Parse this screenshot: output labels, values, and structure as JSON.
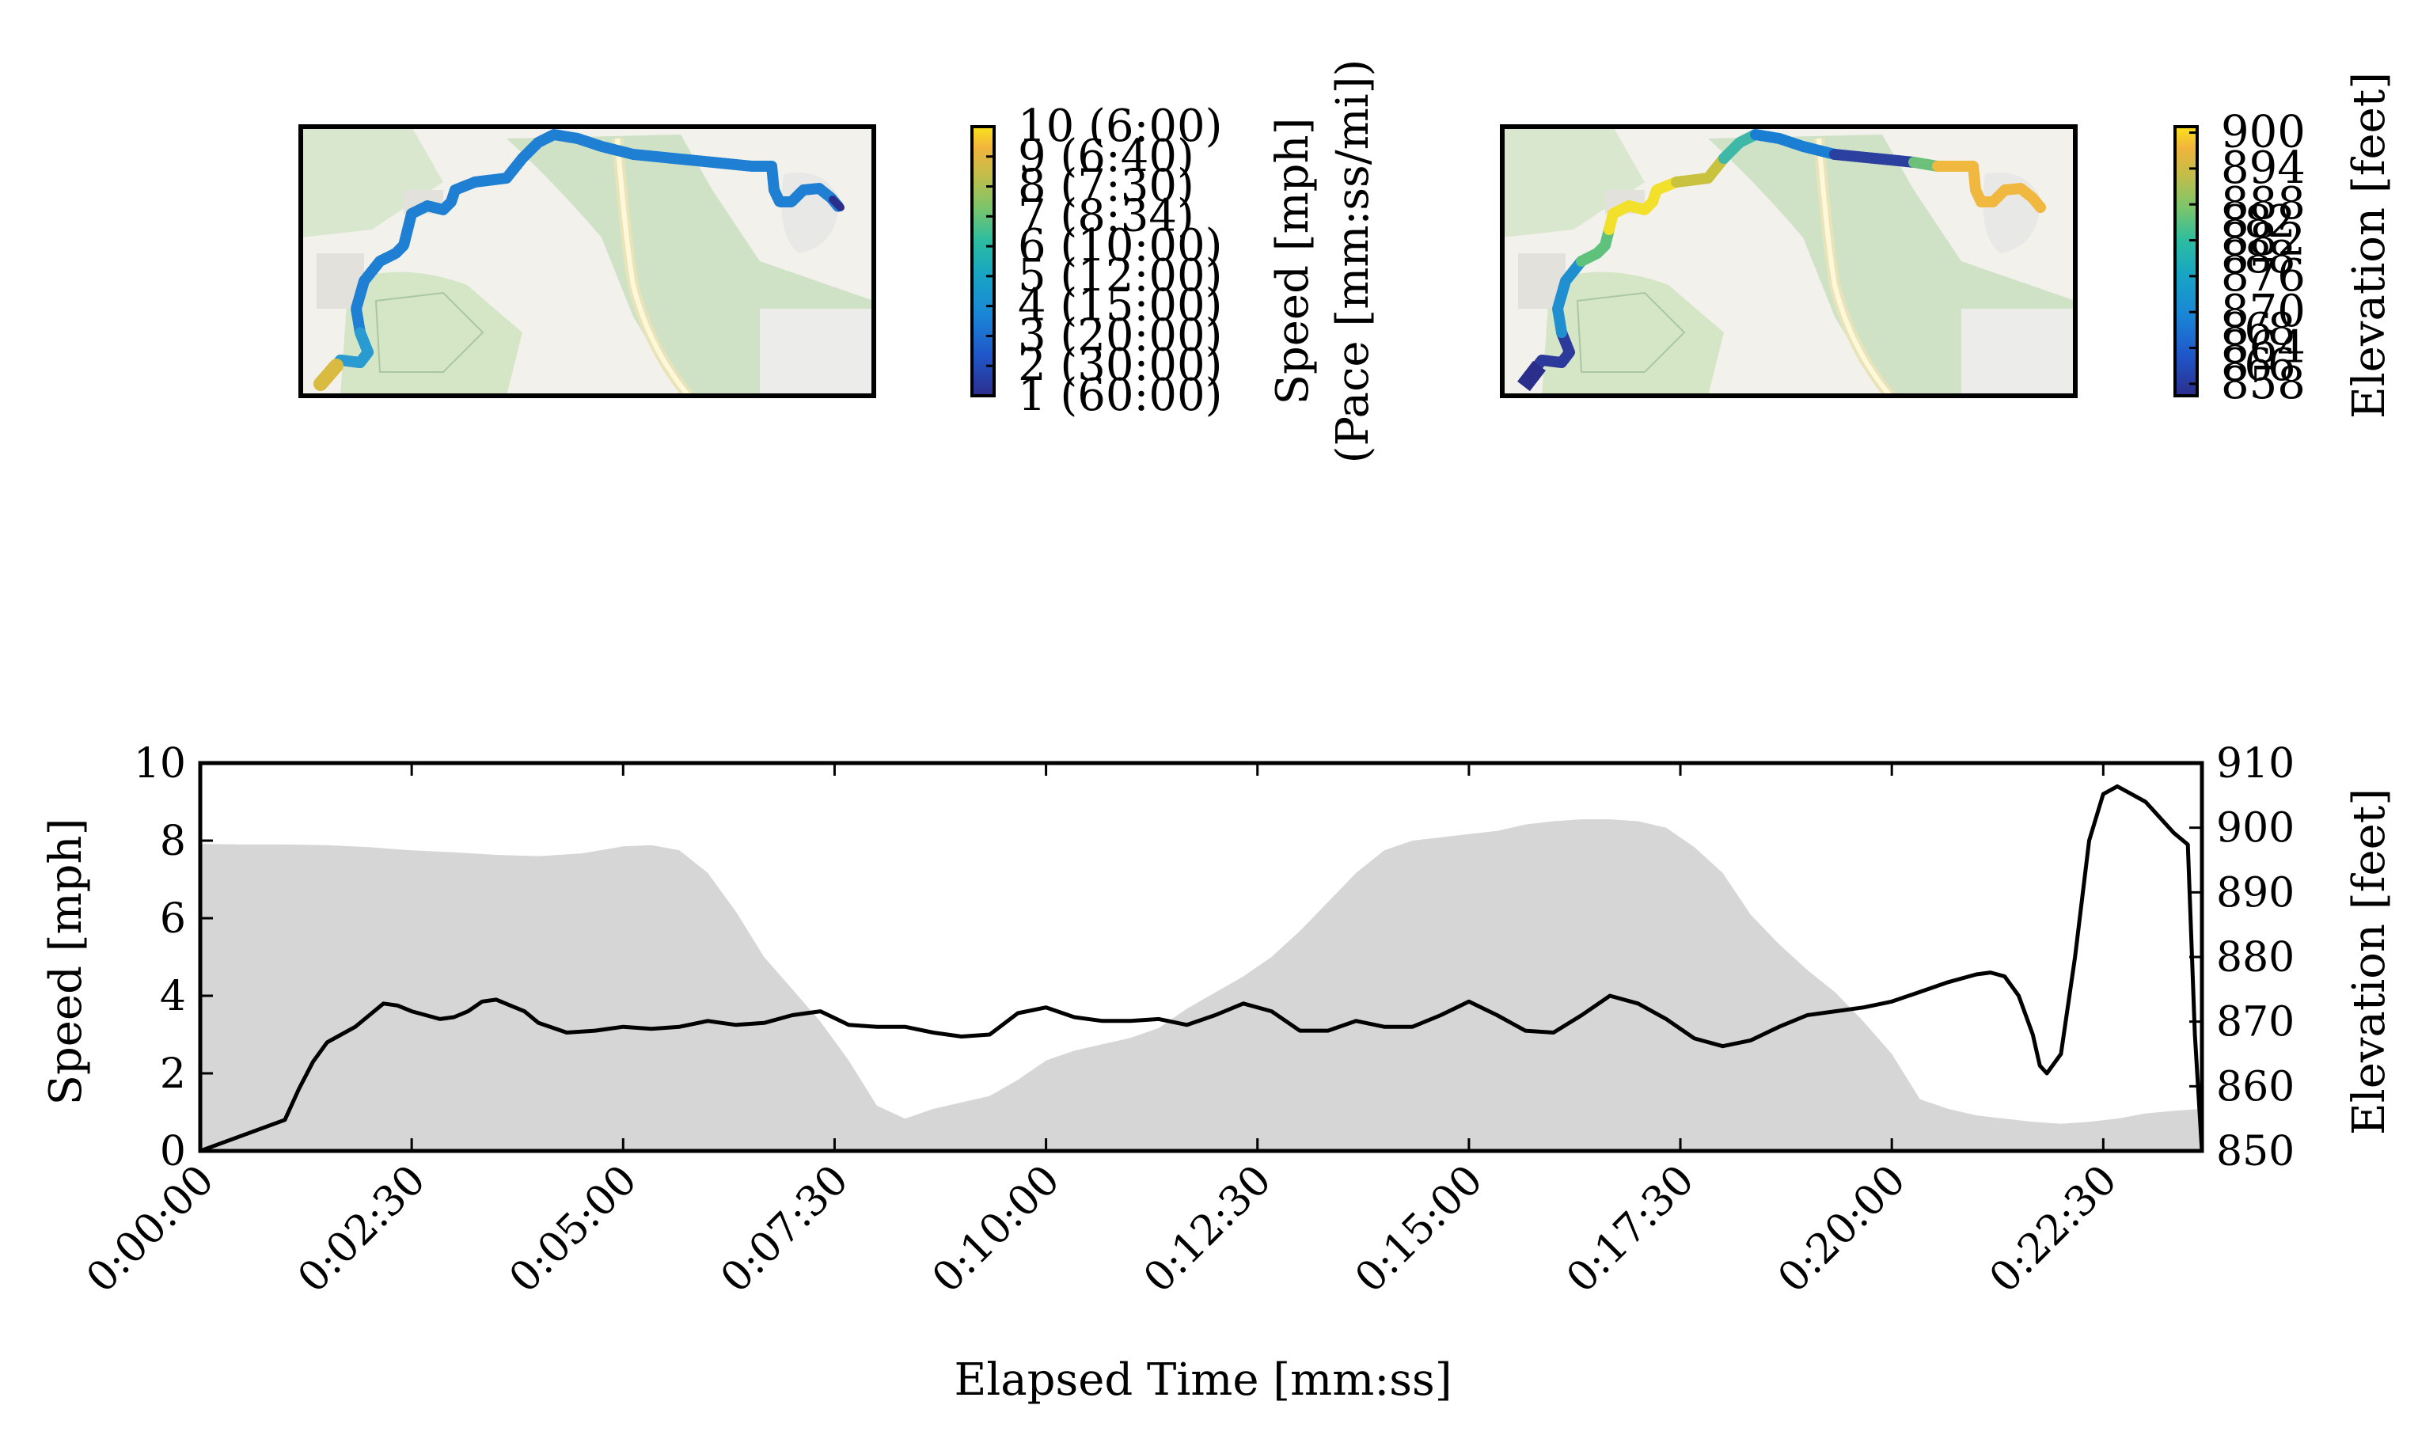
{
  "chart_data": [
    {
      "type": "map",
      "panel": "speed-route-map",
      "colorbar": {
        "label_line1": "Speed [mph]",
        "label_line2": "(Pace [mm:ss/mi])",
        "ticks": [
          {
            "value": 1,
            "label": "1 (60:00)"
          },
          {
            "value": 2,
            "label": "2 (30:00)"
          },
          {
            "value": 3,
            "label": "3 (20:00)"
          },
          {
            "value": 4,
            "label": "4 (15:00)"
          },
          {
            "value": 5,
            "label": "5 (12:00)"
          },
          {
            "value": 6,
            "label": "6 (10:00)"
          },
          {
            "value": 7,
            "label": "7 (8:34)"
          },
          {
            "value": 8,
            "label": "8 (7:30)"
          },
          {
            "value": 9,
            "label": "9 (6:40)"
          },
          {
            "value": 10,
            "label": "10 (6:00)"
          }
        ],
        "colormap": [
          "#2c2e8c",
          "#1f56c9",
          "#1a86d6",
          "#17a5c4",
          "#2ebd9f",
          "#7cc56a",
          "#c3bd4a",
          "#f0b43c",
          "#fbe11c"
        ]
      }
    },
    {
      "type": "map",
      "panel": "elevation-route-map",
      "colorbar": {
        "label": "Elevation [feet]",
        "ticks": [
          "858",
          "864",
          "870",
          "876",
          "882",
          "888",
          "894",
          "900"
        ],
        "overlap_labels": [
          "8 6 6",
          "8 8 8",
          "8 8 2",
          "8 6 8"
        ]
      }
    },
    {
      "type": "line",
      "panel": "speed-elevation-profile",
      "xlabel": "Elapsed Time [mm:ss]",
      "ylabel": "Speed [mph]",
      "y2label": "Elevation [feet]",
      "xlim": [
        0,
        1420
      ],
      "ylim": [
        0,
        10
      ],
      "y2lim": [
        850,
        910
      ],
      "xticks": [
        {
          "t": 0,
          "label": "0:00:00"
        },
        {
          "t": 150,
          "label": "0:02:30"
        },
        {
          "t": 300,
          "label": "0:05:00"
        },
        {
          "t": 450,
          "label": "0:07:30"
        },
        {
          "t": 600,
          "label": "0:10:00"
        },
        {
          "t": 750,
          "label": "0:12:30"
        },
        {
          "t": 900,
          "label": "0:15:00"
        },
        {
          "t": 1050,
          "label": "0:17:30"
        },
        {
          "t": 1200,
          "label": "0:20:00"
        },
        {
          "t": 1350,
          "label": "0:22:30"
        }
      ],
      "yticks": [
        "0",
        "2",
        "4",
        "6",
        "8",
        "10"
      ],
      "y2ticks": [
        "850",
        "860",
        "870",
        "880",
        "890",
        "900",
        "910"
      ],
      "series": [
        {
          "kind": "area",
          "axis": "right",
          "color": "#d6d6d6",
          "x": [
            0,
            30,
            60,
            90,
            120,
            150,
            180,
            210,
            240,
            270,
            300,
            320,
            340,
            360,
            380,
            400,
            420,
            440,
            460,
            480,
            500,
            520,
            540,
            560,
            580,
            600,
            620,
            640,
            660,
            680,
            700,
            720,
            740,
            760,
            780,
            800,
            820,
            840,
            860,
            880,
            900,
            920,
            940,
            960,
            980,
            1000,
            1020,
            1040,
            1060,
            1080,
            1100,
            1120,
            1140,
            1160,
            1180,
            1200,
            1220,
            1240,
            1260,
            1280,
            1300,
            1320,
            1340,
            1360,
            1380,
            1400,
            1420
          ],
          "y": [
            897.5,
            897.4,
            897.4,
            897.3,
            897,
            896.5,
            896.2,
            895.8,
            895.6,
            896,
            897.1,
            897.3,
            896.5,
            893,
            887,
            880,
            875,
            870,
            864,
            857,
            855,
            856.5,
            857.5,
            858.5,
            861,
            864,
            865.5,
            866.5,
            867.5,
            869,
            872,
            874.5,
            877,
            880,
            884,
            888.5,
            893,
            896.5,
            898,
            898.5,
            899,
            899.5,
            900.5,
            901,
            901.3,
            901.3,
            901,
            900,
            897,
            893,
            886.5,
            882,
            878,
            874.5,
            870,
            865,
            858,
            856.5,
            855.5,
            855,
            854.5,
            854.2,
            854.5,
            855,
            855.8,
            856.2,
            856.5
          ]
        },
        {
          "kind": "line",
          "axis": "left",
          "color": "#000000",
          "x": [
            0,
            60,
            70,
            80,
            90,
            100,
            110,
            120,
            130,
            140,
            150,
            160,
            170,
            180,
            190,
            200,
            210,
            220,
            230,
            240,
            260,
            280,
            300,
            320,
            340,
            360,
            380,
            400,
            420,
            440,
            460,
            480,
            500,
            520,
            540,
            560,
            580,
            600,
            620,
            640,
            660,
            680,
            700,
            720,
            740,
            760,
            780,
            800,
            820,
            840,
            860,
            880,
            900,
            920,
            940,
            960,
            980,
            1000,
            1020,
            1040,
            1060,
            1080,
            1100,
            1120,
            1140,
            1160,
            1180,
            1200,
            1220,
            1240,
            1260,
            1270,
            1280,
            1290,
            1300,
            1305,
            1310,
            1320,
            1330,
            1340,
            1350,
            1360,
            1370,
            1380,
            1390,
            1400,
            1410,
            1415,
            1420
          ],
          "y": [
            0,
            0.8,
            1.6,
            2.3,
            2.8,
            3.0,
            3.2,
            3.5,
            3.8,
            3.75,
            3.6,
            3.5,
            3.4,
            3.45,
            3.6,
            3.85,
            3.9,
            3.75,
            3.6,
            3.3,
            3.05,
            3.1,
            3.2,
            3.15,
            3.2,
            3.35,
            3.25,
            3.3,
            3.5,
            3.6,
            3.25,
            3.2,
            3.2,
            3.05,
            2.95,
            3.0,
            3.55,
            3.7,
            3.45,
            3.35,
            3.35,
            3.4,
            3.25,
            3.5,
            3.8,
            3.6,
            3.1,
            3.1,
            3.35,
            3.2,
            3.2,
            3.5,
            3.85,
            3.5,
            3.1,
            3.05,
            3.5,
            4.0,
            3.8,
            3.4,
            2.9,
            2.7,
            2.85,
            3.2,
            3.5,
            3.6,
            3.7,
            3.85,
            4.1,
            4.35,
            4.55,
            4.6,
            4.5,
            4.0,
            3.0,
            2.2,
            2.0,
            2.5,
            5.0,
            8.0,
            9.2,
            9.4,
            9.2,
            9.0,
            8.6,
            8.2,
            7.9,
            3.0,
            0.0
          ]
        }
      ]
    }
  ]
}
